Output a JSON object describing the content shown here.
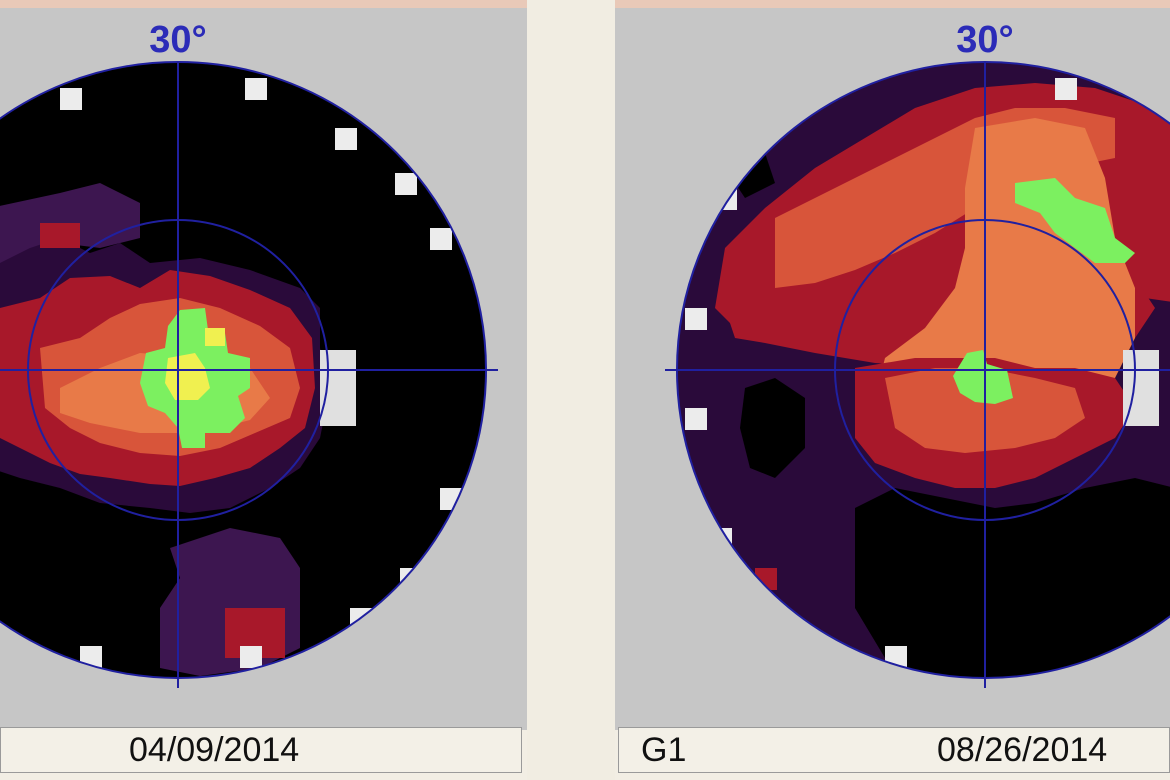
{
  "left_panel": {
    "scale_label": "30°",
    "date": "04/09/2014",
    "program": ""
  },
  "right_panel": {
    "scale_label": "30°",
    "date": "08/26/2014",
    "program": "G1"
  },
  "colors": {
    "background": "#c6c6c6",
    "grid": "#2020a0",
    "level_black": "#000000",
    "level_dark_purple": "#2a0a3a",
    "level_purple": "#3d1650",
    "level_dark_red": "#a8182a",
    "level_red_orange": "#d8553a",
    "level_orange": "#e87a48",
    "level_green": "#7cf060",
    "level_yellow": "#f0f050"
  }
}
